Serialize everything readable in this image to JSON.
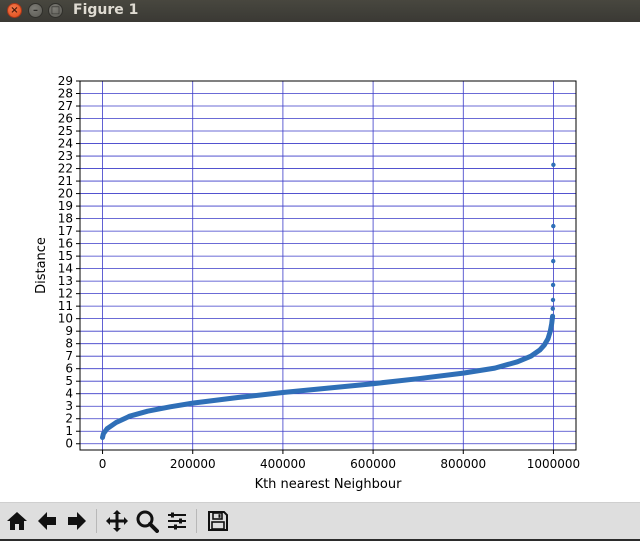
{
  "window": {
    "title": "Figure 1",
    "close_glyph": "×",
    "min_glyph": "–",
    "max_glyph": "□"
  },
  "toolbar": {
    "buttons": [
      {
        "icon": "home-icon",
        "action": "home"
      },
      {
        "icon": "back-arrow-icon",
        "action": "back"
      },
      {
        "icon": "forward-arrow-icon",
        "action": "forward"
      },
      {
        "icon": "pan-icon",
        "action": "pan"
      },
      {
        "icon": "zoom-icon",
        "action": "zoom"
      },
      {
        "icon": "subplots-icon",
        "action": "configure subplots"
      },
      {
        "icon": "save-icon",
        "action": "save"
      }
    ]
  },
  "chart_data": {
    "type": "scatter",
    "title": "",
    "xlabel": "Kth nearest Neighbour",
    "ylabel": "Distance",
    "xlim": [
      -50000,
      1050000
    ],
    "ylim": [
      -0.5,
      29
    ],
    "x_ticks": [
      0,
      200000,
      400000,
      600000,
      800000,
      1000000
    ],
    "y_ticks": [
      0,
      1,
      2,
      3,
      4,
      5,
      6,
      7,
      8,
      9,
      10,
      11,
      12,
      13,
      14,
      15,
      16,
      17,
      18,
      19,
      20,
      21,
      22,
      23,
      24,
      25,
      26,
      27,
      28,
      29
    ],
    "grid": true,
    "grid_color": "#3a3ac8",
    "series": [
      {
        "color": "#2f6fb7",
        "curve_points": [
          {
            "x": 0,
            "y": 0.5
          },
          {
            "x": 2000,
            "y": 0.8
          },
          {
            "x": 10000,
            "y": 1.2
          },
          {
            "x": 30000,
            "y": 1.7
          },
          {
            "x": 60000,
            "y": 2.2
          },
          {
            "x": 100000,
            "y": 2.6
          },
          {
            "x": 150000,
            "y": 2.95
          },
          {
            "x": 200000,
            "y": 3.25
          },
          {
            "x": 300000,
            "y": 3.7
          },
          {
            "x": 400000,
            "y": 4.1
          },
          {
            "x": 500000,
            "y": 4.45
          },
          {
            "x": 600000,
            "y": 4.8
          },
          {
            "x": 700000,
            "y": 5.2
          },
          {
            "x": 800000,
            "y": 5.65
          },
          {
            "x": 870000,
            "y": 6.05
          },
          {
            "x": 920000,
            "y": 6.55
          },
          {
            "x": 950000,
            "y": 7.0
          },
          {
            "x": 970000,
            "y": 7.5
          },
          {
            "x": 980000,
            "y": 7.9
          },
          {
            "x": 988000,
            "y": 8.4
          },
          {
            "x": 993000,
            "y": 9.0
          },
          {
            "x": 996000,
            "y": 9.6
          },
          {
            "x": 998000,
            "y": 10.2
          }
        ],
        "outliers": [
          {
            "x": 998500,
            "y": 10.8
          },
          {
            "x": 999000,
            "y": 11.5
          },
          {
            "x": 999200,
            "y": 12.7
          },
          {
            "x": 999500,
            "y": 14.6
          },
          {
            "x": 999700,
            "y": 17.4
          },
          {
            "x": 999900,
            "y": 22.3
          }
        ]
      }
    ]
  }
}
